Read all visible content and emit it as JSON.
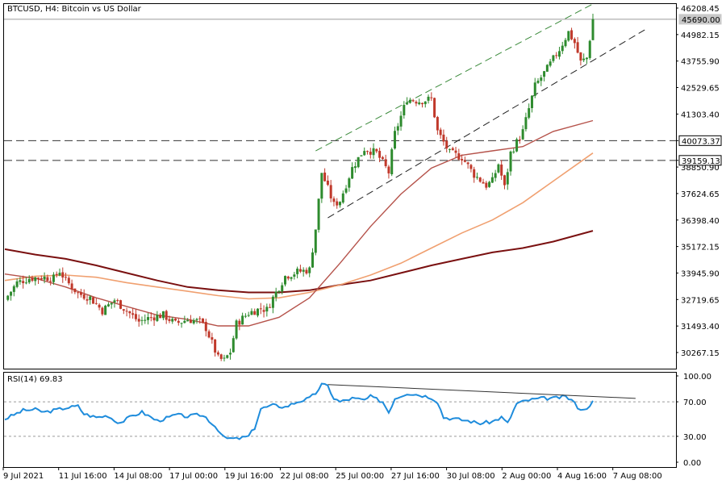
{
  "chart_title": "BTCUSD, H4:  Bitcoin vs US Dollar",
  "colors": {
    "bull": "#2e8b2e",
    "bear": "#c0392b",
    "ma50": "#b5524a",
    "ma100": "#f0a070",
    "ma200": "#7a1010",
    "rsi": "#1e8cdc",
    "channel": "#3a8a3a",
    "dashed_h": "#333333"
  },
  "chart_data": [
    {
      "type": "candlestick",
      "title": "BTCUSD, H4:  Bitcoin vs US Dollar",
      "y_ticks": [
        "46208.45",
        "44982.15",
        "43755.90",
        "42529.65",
        "41303.40",
        "40073.37",
        "39159.13",
        "38850.90",
        "37624.65",
        "36398.40",
        "35172.15",
        "33945.90",
        "32719.65",
        "31493.40",
        "30267.15"
      ],
      "ylim": [
        29600,
        46400
      ],
      "price_labels": [
        {
          "text": "45690.00",
          "value": 45690.0
        },
        {
          "text": "40073.37",
          "value": 40073.37
        },
        {
          "text": "39159.13",
          "value": 39159.13
        }
      ],
      "x_ticks": [
        "9 Jul 2021",
        "11 Jul 16:00",
        "14 Jul 08:00",
        "17 Jul 00:00",
        "19 Jul 16:00",
        "22 Jul 08:00",
        "25 Jul 00:00",
        "27 Jul 16:00",
        "30 Jul 08:00",
        "2 Aug 00:00",
        "4 Aug 16:00",
        "7 Aug 08:00"
      ],
      "price_path": [
        [
          0,
          32700
        ],
        [
          4,
          33500
        ],
        [
          8,
          33700
        ],
        [
          12,
          33750
        ],
        [
          16,
          33700
        ],
        [
          18,
          34050
        ],
        [
          20,
          33600
        ],
        [
          24,
          33000
        ],
        [
          28,
          32800
        ],
        [
          32,
          32200
        ],
        [
          36,
          32700
        ],
        [
          40,
          32200
        ],
        [
          44,
          31700
        ],
        [
          48,
          31900
        ],
        [
          52,
          32000
        ],
        [
          56,
          31600
        ],
        [
          60,
          31800
        ],
        [
          64,
          31700
        ],
        [
          66,
          31400
        ],
        [
          68,
          30700
        ],
        [
          70,
          30000
        ],
        [
          72,
          29900
        ],
        [
          74,
          30300
        ],
        [
          76,
          31600
        ],
        [
          80,
          32100
        ],
        [
          84,
          32300
        ],
        [
          86,
          32250
        ],
        [
          88,
          32800
        ],
        [
          92,
          33800
        ],
        [
          96,
          34000
        ],
        [
          100,
          34100
        ],
        [
          102,
          36000
        ],
        [
          104,
          38600
        ],
        [
          108,
          37100
        ],
        [
          110,
          37300
        ],
        [
          114,
          38800
        ],
        [
          118,
          39700
        ],
        [
          122,
          39500
        ],
        [
          126,
          38600
        ],
        [
          128,
          40400
        ],
        [
          132,
          42000
        ],
        [
          136,
          41900
        ],
        [
          140,
          42000
        ],
        [
          142,
          40500
        ],
        [
          146,
          39500
        ],
        [
          150,
          39300
        ],
        [
          154,
          38500
        ],
        [
          158,
          38000
        ],
        [
          160,
          38200
        ],
        [
          162,
          39000
        ],
        [
          164,
          37900
        ],
        [
          166,
          39500
        ],
        [
          170,
          40500
        ],
        [
          174,
          42600
        ],
        [
          178,
          43400
        ],
        [
          182,
          44300
        ],
        [
          185,
          45100
        ],
        [
          187,
          44600
        ],
        [
          189,
          43700
        ],
        [
          191,
          43900
        ],
        [
          193,
          45690
        ]
      ],
      "ma50": [
        [
          0,
          33900
        ],
        [
          10,
          33700
        ],
        [
          20,
          33300
        ],
        [
          30,
          32800
        ],
        [
          40,
          32400
        ],
        [
          50,
          32000
        ],
        [
          60,
          31800
        ],
        [
          70,
          31500
        ],
        [
          80,
          31500
        ],
        [
          90,
          31900
        ],
        [
          100,
          32800
        ],
        [
          110,
          34400
        ],
        [
          120,
          36100
        ],
        [
          130,
          37600
        ],
        [
          140,
          38800
        ],
        [
          150,
          39400
        ],
        [
          160,
          39600
        ],
        [
          170,
          39800
        ],
        [
          180,
          40500
        ],
        [
          193,
          41000
        ]
      ],
      "ma100": [
        [
          0,
          33600
        ],
        [
          10,
          33800
        ],
        [
          20,
          33850
        ],
        [
          30,
          33750
        ],
        [
          40,
          33500
        ],
        [
          50,
          33300
        ],
        [
          60,
          33100
        ],
        [
          70,
          32900
        ],
        [
          80,
          32750
        ],
        [
          90,
          32800
        ],
        [
          100,
          33050
        ],
        [
          110,
          33400
        ],
        [
          120,
          33850
        ],
        [
          130,
          34400
        ],
        [
          140,
          35100
        ],
        [
          150,
          35800
        ],
        [
          160,
          36400
        ],
        [
          170,
          37200
        ],
        [
          180,
          38200
        ],
        [
          193,
          39500
        ]
      ],
      "ma200": [
        [
          0,
          35050
        ],
        [
          10,
          34800
        ],
        [
          20,
          34600
        ],
        [
          30,
          34300
        ],
        [
          40,
          33950
        ],
        [
          50,
          33600
        ],
        [
          60,
          33300
        ],
        [
          70,
          33150
        ],
        [
          80,
          33050
        ],
        [
          90,
          33050
        ],
        [
          100,
          33150
        ],
        [
          110,
          33400
        ],
        [
          120,
          33600
        ],
        [
          130,
          33950
        ],
        [
          140,
          34300
        ],
        [
          150,
          34600
        ],
        [
          160,
          34900
        ],
        [
          170,
          35100
        ],
        [
          180,
          35400
        ],
        [
          193,
          35900
        ]
      ],
      "channel": {
        "upper": [
          [
            102,
            39600
          ],
          [
            193,
            46400
          ]
        ],
        "lower": [
          [
            106,
            36500
          ],
          [
            210,
            45200
          ]
        ]
      },
      "h_levels": [
        40073.37,
        39159.13
      ],
      "grid": false
    },
    {
      "type": "line",
      "title": "RSI(14) 69.83",
      "y_ticks": [
        "100.00",
        "70.00",
        "30.00",
        "0.00"
      ],
      "ylim": [
        -5,
        103
      ],
      "levels": [
        70,
        30
      ],
      "series": [
        {
          "values": [
            [
              0,
              50
            ],
            [
              3,
              55
            ],
            [
              6,
              60
            ],
            [
              10,
              61
            ],
            [
              13,
              58
            ],
            [
              16,
              60
            ],
            [
              20,
              63
            ],
            [
              24,
              65
            ],
            [
              26,
              56
            ],
            [
              30,
              52
            ],
            [
              34,
              54
            ],
            [
              36,
              48
            ],
            [
              38,
              46
            ],
            [
              42,
              54
            ],
            [
              45,
              58
            ],
            [
              48,
              52
            ],
            [
              50,
              48
            ],
            [
              54,
              52
            ],
            [
              56,
              55
            ],
            [
              60,
              53
            ],
            [
              64,
              55
            ],
            [
              66,
              52
            ],
            [
              68,
              45
            ],
            [
              70,
              38
            ],
            [
              72,
              28
            ],
            [
              76,
              27
            ],
            [
              80,
              30
            ],
            [
              82,
              40
            ],
            [
              84,
              62
            ],
            [
              88,
              66
            ],
            [
              92,
              64
            ],
            [
              96,
              70
            ],
            [
              100,
              74
            ],
            [
              102,
              80
            ],
            [
              104,
              90
            ],
            [
              106,
              88
            ],
            [
              108,
              74
            ],
            [
              110,
              70
            ],
            [
              114,
              74
            ],
            [
              118,
              72
            ],
            [
              120,
              76
            ],
            [
              124,
              70
            ],
            [
              126,
              58
            ],
            [
              128,
              74
            ],
            [
              132,
              80
            ],
            [
              136,
              78
            ],
            [
              140,
              75
            ],
            [
              142,
              70
            ],
            [
              144,
              52
            ],
            [
              148,
              50
            ],
            [
              152,
              48
            ],
            [
              156,
              45
            ],
            [
              160,
              47
            ],
            [
              163,
              52
            ],
            [
              165,
              45
            ],
            [
              168,
              68
            ],
            [
              172,
              72
            ],
            [
              176,
              74
            ],
            [
              180,
              74
            ],
            [
              184,
              76
            ],
            [
              186,
              72
            ],
            [
              188,
              64
            ],
            [
              190,
              60
            ],
            [
              193,
              70
            ]
          ]
        }
      ],
      "divergence_line": [
        [
          106,
          90
        ],
        [
          207,
          74
        ]
      ]
    }
  ]
}
